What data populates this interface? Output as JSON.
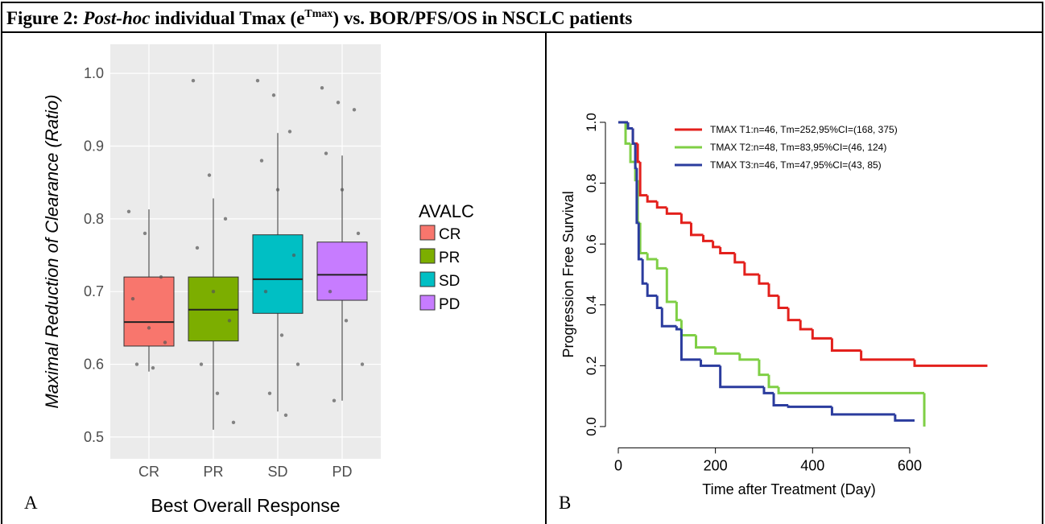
{
  "caption": {
    "prefix": "Figure 2:",
    "italic": "Post-hoc",
    "text1": "individual Tmax (e",
    "sup": "Tmax",
    "text2": ") vs. BOR/PFS/OS in NSCLC patients"
  },
  "chart_data": [
    {
      "type": "box",
      "panel_label": "A",
      "x_label": "Best Overall Response",
      "y_label": "Maximal Reduction of Clearance (Ratio)",
      "legend_title": "AVALC",
      "categories": [
        "CR",
        "PR",
        "SD",
        "PD"
      ],
      "colors": [
        "#f8766d",
        "#7cae00",
        "#00bfc4",
        "#c77cff"
      ],
      "boxes": [
        {
          "low": 0.59,
          "q1": 0.625,
          "median": 0.658,
          "q3": 0.72,
          "high": 0.813
        },
        {
          "low": 0.51,
          "q1": 0.632,
          "median": 0.675,
          "q3": 0.72,
          "high": 0.828
        },
        {
          "low": 0.535,
          "q1": 0.67,
          "median": 0.717,
          "q3": 0.778,
          "high": 0.918
        },
        {
          "low": 0.55,
          "q1": 0.688,
          "median": 0.723,
          "q3": 0.768,
          "high": 0.887
        }
      ],
      "points": [
        [
          0.81,
          0.78,
          0.72,
          0.69,
          0.65,
          0.63,
          0.6,
          0.595
        ],
        [
          0.99,
          0.86,
          0.8,
          0.76,
          0.7,
          0.66,
          0.6,
          0.56,
          0.52
        ],
        [
          0.99,
          0.97,
          0.92,
          0.88,
          0.84,
          0.75,
          0.7,
          0.64,
          0.6,
          0.56,
          0.53
        ],
        [
          0.98,
          0.96,
          0.95,
          0.89,
          0.84,
          0.78,
          0.7,
          0.66,
          0.6,
          0.55
        ]
      ],
      "ylim": [
        0.47,
        1.04
      ],
      "yticks": [
        0.5,
        0.6,
        0.7,
        0.8,
        0.9,
        {
          "value": 1,
          "label": "1.0"
        }
      ],
      "grid": true
    },
    {
      "type": "km",
      "panel_label": "B",
      "x_label": "Time after Treatment (Day)",
      "y_label": "Progression Free Survival",
      "series": [
        {
          "name": "TMAX T1:n=46, Tm=252,95%CI=(168, 375)",
          "color": "#e3201c",
          "x": [
            0,
            20,
            30,
            40,
            45,
            60,
            80,
            100,
            130,
            150,
            175,
            195,
            210,
            240,
            260,
            290,
            310,
            330,
            350,
            375,
            400,
            440,
            500,
            610,
            760
          ],
          "values": [
            1,
            0.98,
            0.93,
            0.87,
            0.76,
            0.74,
            0.72,
            0.7,
            0.67,
            0.63,
            0.61,
            0.59,
            0.57,
            0.54,
            0.5,
            0.47,
            0.43,
            0.39,
            0.35,
            0.32,
            0.29,
            0.25,
            0.22,
            0.2,
            0.2
          ]
        },
        {
          "name": "TMAX T2:n=48, Tm=83,95%CI=(46, 124)",
          "color": "#7fcf45",
          "x": [
            0,
            15,
            25,
            35,
            40,
            45,
            60,
            80,
            100,
            120,
            130,
            160,
            200,
            250,
            290,
            310,
            330,
            620,
            630
          ],
          "values": [
            1,
            0.93,
            0.87,
            0.81,
            0.67,
            0.57,
            0.55,
            0.52,
            0.41,
            0.35,
            0.3,
            0.26,
            0.24,
            0.22,
            0.17,
            0.13,
            0.11,
            0.11,
            0
          ]
        },
        {
          "name": "TMAX T3:n=46, Tm=47,95%CI=(43, 85)",
          "color": "#2b3c9e",
          "x": [
            0,
            20,
            30,
            35,
            38,
            42,
            50,
            60,
            80,
            90,
            120,
            130,
            170,
            210,
            300,
            320,
            350,
            440,
            570,
            610
          ],
          "values": [
            1,
            0.98,
            0.93,
            0.85,
            0.67,
            0.55,
            0.47,
            0.43,
            0.39,
            0.33,
            0.32,
            0.22,
            0.2,
            0.13,
            0.11,
            0.07,
            0.065,
            0.04,
            0.02,
            0.02
          ]
        }
      ],
      "xlim": [
        -26.5,
        799
      ],
      "ylim": [
        -0.07,
        1.02
      ],
      "xticks": [
        0,
        200,
        400,
        600
      ],
      "yticks": [
        {
          "value": 0,
          "label": "0.0"
        },
        0.2,
        0.4,
        0.6,
        0.8,
        {
          "value": 1,
          "label": "1.0"
        }
      ]
    }
  ]
}
